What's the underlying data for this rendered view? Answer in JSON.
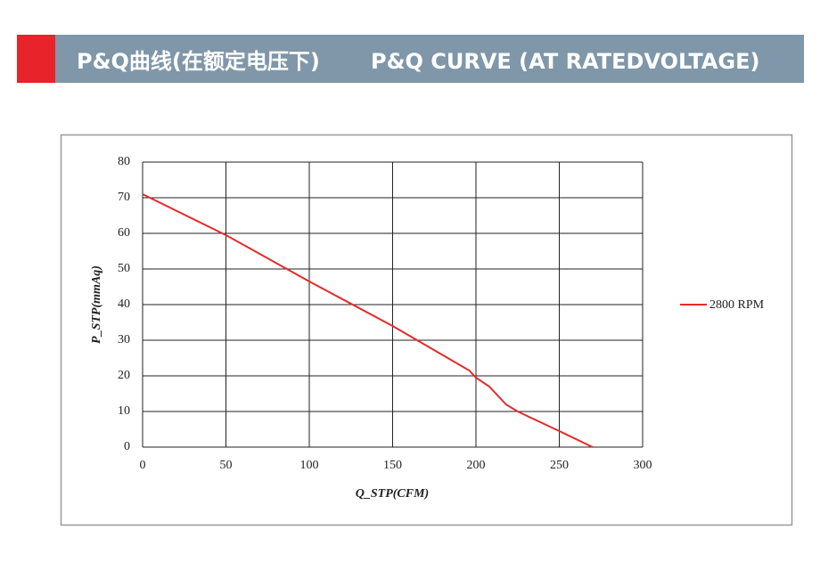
{
  "chart_data": {
    "type": "line",
    "title": "P&Q曲线(在额定电压下)",
    "subtitle": "P&Q CURVE (AT RATEDVOLTAGE)",
    "x_label": "Q_STP(CFM)",
    "y_label": "P_STP(mmAq)",
    "x": [
      0,
      50,
      100,
      150,
      196,
      200,
      208,
      213,
      218,
      225,
      250,
      270
    ],
    "series": [
      {
        "name": "2800 RPM",
        "color": "#e32a2a",
        "values": [
          71,
          59.5,
          46.5,
          34,
          21.5,
          19.5,
          17,
          14.5,
          12,
          10,
          4.5,
          0
        ]
      }
    ],
    "xlim": [
      0,
      300
    ],
    "xticks": [
      0,
      50,
      100,
      150,
      200,
      250,
      300
    ],
    "ylim": [
      0,
      80
    ],
    "yticks": [
      0,
      10,
      20,
      30,
      40,
      50,
      60,
      70,
      80
    ],
    "grid": true,
    "legend": "right"
  }
}
